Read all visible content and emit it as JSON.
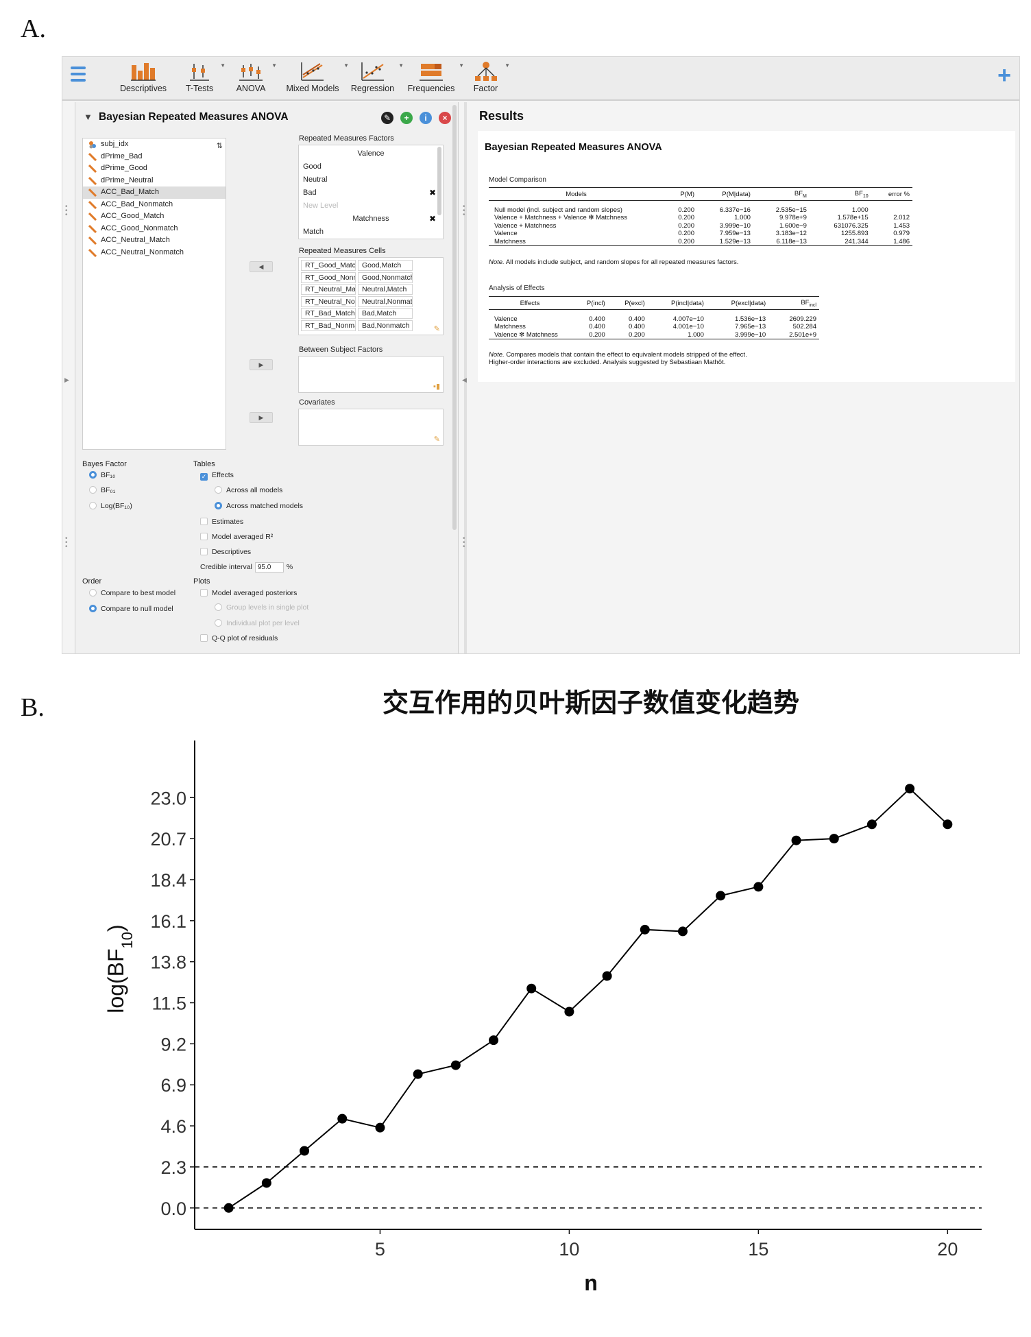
{
  "panel_labels": {
    "a": "A.",
    "b": "B."
  },
  "ribbon": {
    "menu_icon": "hamburger-icon",
    "modules": [
      "Descriptives",
      "T-Tests",
      "ANOVA",
      "Mixed Models",
      "Regression",
      "Frequencies",
      "Factor"
    ],
    "add_module_icon": "plus-icon"
  },
  "analysis": {
    "title": "Bayesian Repeated Measures ANOVA",
    "variables": [
      "subj_idx",
      "dPrime_Bad",
      "dPrime_Good",
      "dPrime_Neutral",
      "ACC_Bad_Match",
      "ACC_Bad_Nonmatch",
      "ACC_Good_Match",
      "ACC_Good_Nonmatch",
      "ACC_Neutral_Match",
      "ACC_Neutral_Nonmatch"
    ],
    "selected_variable": "ACC_Bad_Match",
    "rm_factors_label": "Repeated Measures Factors",
    "rm_factors": {
      "factor1": "Valence",
      "levels1": [
        "Good",
        "Neutral",
        "Bad"
      ],
      "new_level": "New Level",
      "factor2": "Matchness",
      "levels2": [
        "Match"
      ]
    },
    "rm_cells_label": "Repeated Measures Cells",
    "rm_cells": [
      [
        "RT_Good_Match",
        "Good,Match"
      ],
      [
        "RT_Good_Nonm...",
        "Good,Nonmatch"
      ],
      [
        "RT_Neutral_Match",
        "Neutral,Match"
      ],
      [
        "RT_Neutral_Non...",
        "Neutral,Nonmatch"
      ],
      [
        "RT_Bad_Match",
        "Bad,Match"
      ],
      [
        "RT_Bad_Nonmat...",
        "Bad,Nonmatch"
      ]
    ],
    "between_label": "Between Subject Factors",
    "covariates_label": "Covariates",
    "options": {
      "bayes_factor_label": "Bayes Factor",
      "bf10": "BF₁₀",
      "bf01": "BF₀₁",
      "logbf": "Log(BF₁₀)",
      "tables_label": "Tables",
      "effects": "Effects",
      "across_all": "Across all models",
      "across_matched": "Across matched models",
      "estimates": "Estimates",
      "model_r2": "Model averaged R²",
      "descriptives": "Descriptives",
      "ci_label": "Credible interval",
      "ci_value": "95.0",
      "ci_unit": "%",
      "order_label": "Order",
      "compare_best": "Compare to best model",
      "compare_null": "Compare to null model",
      "plots_label": "Plots",
      "model_posteriors": "Model averaged posteriors",
      "group_levels": "Group levels in single plot",
      "individual_plot": "Individual plot per level",
      "qq_plot": "Q-Q plot of residuals"
    }
  },
  "results": {
    "pane_title": "Results",
    "title": "Bayesian Repeated Measures ANOVA",
    "model_comparison": {
      "title": "Model Comparison",
      "headers": [
        "Models",
        "P(M)",
        "P(M|data)",
        "BF",
        "BF",
        "error %"
      ],
      "header_subs": [
        "",
        "",
        "",
        "M",
        "10",
        ""
      ],
      "rows": [
        [
          "Null model (incl. subject and random slopes)",
          "0.200",
          "6.337e−16",
          "2.535e−15",
          "1.000",
          ""
        ],
        [
          "Valence + Matchness + Valence ✻ Matchness",
          "0.200",
          "1.000",
          "9.978e+9",
          "1.578e+15",
          "2.012"
        ],
        [
          "Valence + Matchness",
          "0.200",
          "3.999e−10",
          "1.600e−9",
          "631076.325",
          "1.453"
        ],
        [
          "Valence",
          "0.200",
          "7.959e−13",
          "3.183e−12",
          "1255.893",
          "0.979"
        ],
        [
          "Matchness",
          "0.200",
          "1.529e−13",
          "6.118e−13",
          "241.344",
          "1.486"
        ]
      ],
      "note_label": "Note.",
      "note": " All models include subject, and random slopes for all repeated measures factors."
    },
    "effects": {
      "title": "Analysis of Effects",
      "headers": [
        "Effects",
        "P(incl)",
        "P(excl)",
        "P(incl|data)",
        "P(excl|data)",
        "BF"
      ],
      "bf_sub": "incl",
      "rows": [
        [
          "Valence",
          "0.400",
          "0.400",
          "4.007e−10",
          "1.536e−13",
          "2609.229"
        ],
        [
          "Matchness",
          "0.400",
          "0.400",
          "4.001e−10",
          "7.965e−13",
          "502.284"
        ],
        [
          "Valence ✻ Matchness",
          "0.200",
          "0.200",
          "1.000",
          "3.999e−10",
          "2.501e+9"
        ]
      ],
      "note_label": "Note.",
      "note": " Compares models that contain the effect to equivalent models stripped of the effect.",
      "note2": "Higher-order interactions are excluded. Analysis suggested by Sebastiaan Mathôt."
    }
  },
  "chart_data": {
    "type": "line",
    "title": "交互作用的贝叶斯因子数值变化趋势",
    "xlabel": "n",
    "ylabel": "log(BF",
    "ylabel_sub": "10",
    "ylabel_close": ")",
    "x": [
      1,
      2,
      3,
      4,
      5,
      6,
      7,
      8,
      9,
      10,
      11,
      12,
      13,
      14,
      15,
      16,
      17,
      18,
      19,
      20
    ],
    "y": [
      0.0,
      1.4,
      3.2,
      5.0,
      4.5,
      7.5,
      8.0,
      9.4,
      12.3,
      11.0,
      13.0,
      15.6,
      15.5,
      17.5,
      18.0,
      20.6,
      20.7,
      21.5,
      23.5,
      21.5
    ],
    "xticks": [
      5,
      10,
      15,
      20
    ],
    "yticks": [
      0.0,
      2.3,
      4.6,
      6.9,
      9.2,
      11.5,
      13.8,
      16.1,
      18.4,
      20.7,
      23.0
    ],
    "ytick_labels": [
      "0.0",
      "2.3",
      "4.6",
      "6.9",
      "9.2",
      "11.5",
      "13.8",
      "16.1",
      "18.4",
      "20.7",
      "23.0"
    ],
    "xlim": [
      0.1,
      20.9
    ],
    "ylim": [
      -1.2,
      26.2
    ],
    "reference_lines": [
      0.0,
      2.3
    ],
    "grid": false,
    "line_color": "#000000"
  }
}
